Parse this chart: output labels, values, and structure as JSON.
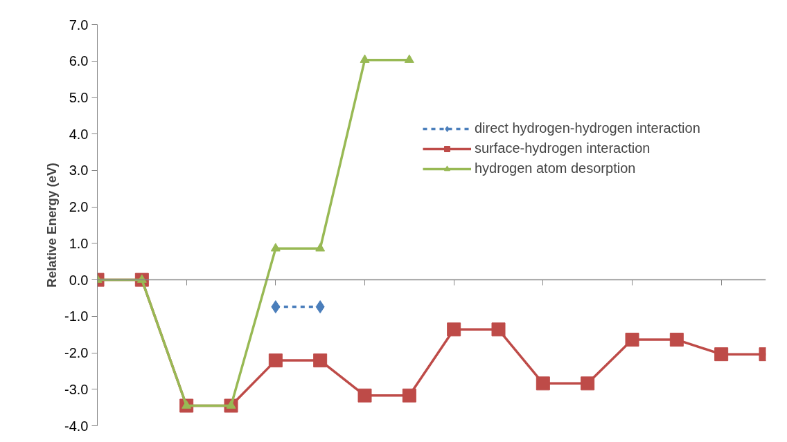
{
  "chart_data": {
    "type": "line",
    "ylabel": "Relative Energy (eV)",
    "categories": [
      null,
      null,
      null,
      null,
      null,
      null,
      null,
      null,
      null,
      null,
      null,
      null,
      null,
      null,
      null,
      null
    ],
    "series": [
      {
        "name": "direct hydrogen-hydrogen interaction",
        "color": "#4a7ebb",
        "marker": "diamond",
        "line_style": "dashed",
        "values": [
          null,
          null,
          null,
          null,
          -0.74,
          -0.74,
          null,
          null,
          null,
          null,
          null,
          null,
          null,
          null,
          null,
          null
        ]
      },
      {
        "name": "surface-hydrogen interaction",
        "color": "#be4b48",
        "marker": "square",
        "line_style": "solid",
        "values": [
          0,
          0,
          -3.45,
          -3.45,
          -2.21,
          -2.21,
          -3.17,
          -3.17,
          -1.36,
          -1.36,
          -2.84,
          -2.84,
          -1.64,
          -1.64,
          -2.04,
          -2.04
        ]
      },
      {
        "name": "hydrogen atom desorption",
        "color": "#98b954",
        "marker": "triangle",
        "line_style": "solid",
        "values": [
          0,
          0,
          -3.45,
          -3.45,
          0.86,
          0.86,
          6.03,
          6.03,
          null,
          null,
          null,
          null,
          null,
          null,
          null,
          null
        ]
      }
    ],
    "ylim": [
      -4,
      7
    ],
    "yticks": [
      {
        "value": -4,
        "label": "-4.0"
      },
      {
        "value": -3,
        "label": "-3.0"
      },
      {
        "value": -2,
        "label": "-2.0"
      },
      {
        "value": -1,
        "label": "-1.0"
      },
      {
        "value": 0,
        "label": "0.0"
      },
      {
        "value": 1,
        "label": "1.0"
      },
      {
        "value": 2,
        "label": "2.0"
      },
      {
        "value": 3,
        "label": "3.0"
      },
      {
        "value": 4,
        "label": "4.0"
      },
      {
        "value": 5,
        "label": "5.0"
      },
      {
        "value": 6,
        "label": "6.0"
      },
      {
        "value": 7,
        "label": "7.0"
      }
    ],
    "ref_lines": [
      {
        "axis": "y",
        "value": 0,
        "color": "#868686"
      }
    ],
    "grid": false,
    "legend": "right",
    "tick_labels": "y"
  }
}
